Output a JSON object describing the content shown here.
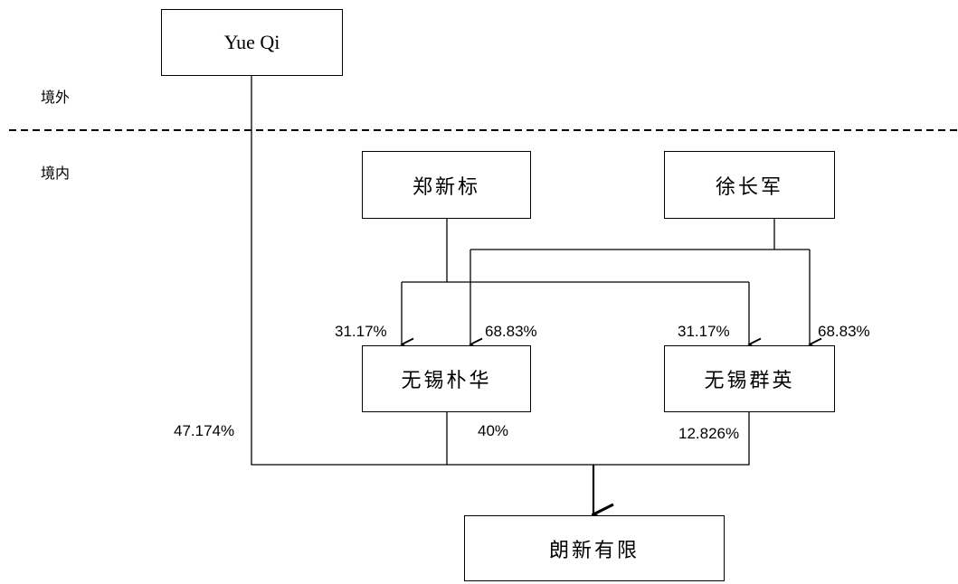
{
  "regions": {
    "overseas": "境外",
    "domestic": "境内"
  },
  "entities": {
    "yue_qi": "Yue Qi",
    "zheng_xinbiao": "郑新标",
    "xu_changjun": "徐长军",
    "wuxi_puhua": "无锡朴华",
    "wuxi_qunying": "无锡群英",
    "langxin": "朗新有限"
  },
  "percentages": {
    "zheng_to_puhua": "31.17%",
    "xu_to_puhua": "68.83%",
    "zheng_to_qunying": "31.17%",
    "xu_to_qunying": "68.83%",
    "yueqi_to_langxin": "47.174%",
    "puhua_to_langxin": "40%",
    "qunying_to_langxin": "12.826%"
  }
}
